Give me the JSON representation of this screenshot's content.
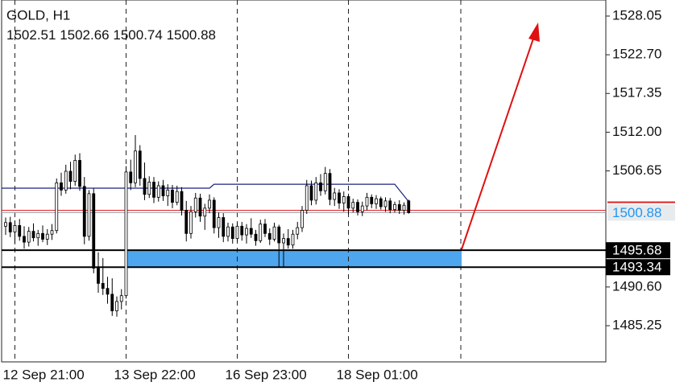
{
  "chart_data": {
    "type": "candlestick",
    "title": "GOLD, H1",
    "categories": [
      null,
      null,
      "12 Sep 21:00",
      null,
      null,
      null,
      null,
      null,
      null,
      null,
      null,
      null,
      null,
      null,
      null,
      null,
      null,
      null,
      null,
      null,
      null,
      null,
      null,
      null,
      null,
      null,
      "13 Sep 22:00",
      null,
      null,
      null,
      null,
      null,
      null,
      null,
      null,
      null,
      null,
      null,
      null,
      null,
      null,
      null,
      null,
      null,
      null,
      null,
      null,
      null,
      null,
      null,
      "16 Sep 23:00",
      null,
      null,
      null,
      null,
      null,
      null,
      null,
      null,
      null,
      null,
      null,
      null,
      null,
      null,
      null,
      null,
      null,
      null,
      null,
      null,
      null,
      null,
      null,
      "18 Sep 01:00",
      null,
      null,
      null,
      null,
      null,
      null,
      null,
      null,
      null,
      null,
      null,
      null,
      null
    ],
    "open": [
      1499.0,
      1499.5,
      1498.2,
      1499.1,
      1497.6,
      1496.8,
      1498.3,
      1497.4,
      1498.0,
      1497.2,
      1497.9,
      1498.4,
      1505.0,
      1504.0,
      1506.6,
      1505.2,
      1508.1,
      1504.5,
      1497.6,
      1503.5,
      1493.2,
      1491.1,
      1490.4,
      1489.6,
      1487.3,
      1488.6,
      1489.4,
      1506.5,
      1505.0,
      1509.4,
      1505.6,
      1503.4,
      1505.1,
      1503.0,
      1504.6,
      1503.2,
      1504.0,
      1502.3,
      1503.8,
      1501.2,
      1498.0,
      1501.0,
      1502.9,
      1500.4,
      1501.5,
      1502.6,
      1498.8,
      1500.2,
      1497.6,
      1498.9,
      1497.3,
      1499.0,
      1497.8,
      1498.7,
      1497.9,
      1497.0,
      1499.3,
      1498.0,
      1497.2,
      1498.9,
      1496.7,
      1497.3,
      1496.4,
      1497.9,
      1498.8,
      1501.2,
      1504.6,
      1502.6,
      1505.0,
      1503.9,
      1506.3,
      1502.7,
      1503.6,
      1502.2,
      1503.1,
      1501.5,
      1502.3,
      1501.0,
      1501.8,
      1503.0,
      1502.1,
      1502.8,
      1501.7,
      1502.5,
      1501.3,
      1502.0,
      1501.2,
      1502.51
    ],
    "high": [
      1500.2,
      1500.3,
      1499.8,
      1500.0,
      1499.0,
      1498.9,
      1499.4,
      1498.5,
      1499.1,
      1498.6,
      1499.3,
      1505.6,
      1506.4,
      1507.5,
      1507.9,
      1508.9,
      1509.1,
      1505.8,
      1504.0,
      1504.2,
      1495.4,
      1494.6,
      1492.0,
      1491.8,
      1489.3,
      1490.3,
      1507.3,
      1508.2,
      1511.6,
      1510.2,
      1507.8,
      1505.9,
      1505.8,
      1505.2,
      1505.4,
      1504.8,
      1504.7,
      1504.6,
      1504.4,
      1502.5,
      1501.8,
      1503.6,
      1503.5,
      1502.1,
      1503.4,
      1503.0,
      1500.9,
      1500.8,
      1499.5,
      1499.4,
      1499.5,
      1499.6,
      1499.3,
      1500.1,
      1498.5,
      1499.9,
      1500.0,
      1498.7,
      1499.5,
      1499.2,
      1498.0,
      1498.6,
      1498.5,
      1499.6,
      1501.8,
      1505.4,
      1505.3,
      1505.8,
      1506.2,
      1507.2,
      1506.9,
      1504.3,
      1504.1,
      1503.8,
      1503.5,
      1502.8,
      1502.7,
      1502.4,
      1503.6,
      1503.4,
      1503.3,
      1503.1,
      1503.0,
      1502.9,
      1502.4,
      1502.6,
      1502.3,
      1502.66
    ],
    "low": [
      1497.8,
      1497.5,
      1496.5,
      1497.0,
      1495.9,
      1496.2,
      1496.9,
      1496.3,
      1496.8,
      1496.4,
      1497.1,
      1498.0,
      1503.2,
      1503.5,
      1504.1,
      1504.6,
      1503.9,
      1496.5,
      1497.0,
      1492.5,
      1489.8,
      1489.5,
      1488.3,
      1486.6,
      1486.5,
      1487.5,
      1489.0,
      1504.0,
      1504.4,
      1504.6,
      1502.6,
      1502.9,
      1502.2,
      1502.4,
      1502.5,
      1501.8,
      1501.5,
      1501.9,
      1500.5,
      1496.9,
      1497.3,
      1500.2,
      1499.6,
      1498.5,
      1500.8,
      1498.0,
      1497.4,
      1496.8,
      1496.9,
      1496.6,
      1496.9,
      1497.0,
      1496.6,
      1497.4,
      1496.3,
      1496.7,
      1497.5,
      1496.4,
      1496.9,
      1493.4,
      1493.4,
      1495.9,
      1495.9,
      1497.2,
      1498.2,
      1500.7,
      1501.9,
      1502.0,
      1503.2,
      1503.4,
      1501.9,
      1501.8,
      1501.4,
      1501.0,
      1500.6,
      1500.9,
      1500.5,
      1500.4,
      1501.2,
      1501.5,
      1501.4,
      1501.3,
      1501.0,
      1500.8,
      1500.9,
      1500.7,
      1500.6,
      1500.74
    ],
    "close": [
      1499.5,
      1498.2,
      1499.1,
      1497.6,
      1496.8,
      1498.3,
      1497.4,
      1498.0,
      1497.2,
      1497.9,
      1498.4,
      1505.0,
      1504.0,
      1506.6,
      1505.2,
      1508.1,
      1504.5,
      1497.6,
      1503.5,
      1493.2,
      1491.1,
      1490.4,
      1489.6,
      1487.3,
      1488.6,
      1489.4,
      1506.5,
      1505.0,
      1509.4,
      1505.6,
      1503.4,
      1505.1,
      1503.0,
      1504.6,
      1503.2,
      1504.0,
      1502.3,
      1503.8,
      1501.2,
      1498.0,
      1501.0,
      1502.9,
      1500.4,
      1501.5,
      1502.6,
      1498.8,
      1500.2,
      1497.6,
      1498.9,
      1497.3,
      1499.0,
      1497.8,
      1498.7,
      1497.9,
      1497.0,
      1499.3,
      1498.0,
      1497.2,
      1498.9,
      1496.7,
      1497.3,
      1496.4,
      1497.9,
      1498.8,
      1501.2,
      1504.6,
      1502.6,
      1505.0,
      1503.9,
      1506.3,
      1502.7,
      1503.6,
      1502.2,
      1503.1,
      1501.5,
      1502.3,
      1501.0,
      1501.8,
      1503.0,
      1502.1,
      1502.8,
      1501.7,
      1502.5,
      1501.3,
      1502.0,
      1501.2,
      1501.9,
      1500.88
    ],
    "ma_values": [
      1504.26,
      1504.26,
      1504.26,
      1504.26,
      1504.26,
      1504.26,
      1504.26,
      1504.26,
      1504.26,
      1504.26,
      1504.26,
      1504.26,
      1504.26,
      1504.26,
      1504.26,
      1504.26,
      1504.26,
      1504.26,
      1504.26,
      1504.26,
      1504.26,
      1504.26,
      1504.26,
      1504.26,
      1504.26,
      1504.26,
      1504.26,
      1504.26,
      1504.26,
      1504.26,
      1504.26,
      1504.26,
      1504.26,
      1504.26,
      1504.26,
      1504.26,
      1504.26,
      1504.26,
      1504.26,
      1504.26,
      1504.26,
      1504.26,
      1504.26,
      1504.26,
      1504.26,
      1504.8,
      1504.8,
      1504.8,
      1504.8,
      1504.8,
      1504.8,
      1504.8,
      1504.8,
      1504.8,
      1504.8,
      1504.8,
      1504.8,
      1504.8,
      1504.8,
      1504.8,
      1504.8,
      1504.8,
      1504.8,
      1504.8,
      1504.8,
      1504.8,
      1504.8,
      1504.8,
      1504.8,
      1504.8,
      1504.8,
      1504.8,
      1504.8,
      1504.8,
      1504.8,
      1504.8,
      1504.8,
      1504.8,
      1504.8,
      1504.8,
      1504.8,
      1504.8,
      1504.8,
      1504.8,
      1504.8,
      1504.0,
      1503.2,
      1502.4
    ],
    "ylim": [
      1480.25,
      1530.27
    ],
    "yticks": [
      1528.05,
      {
        "value": 1522.7,
        "label": "1522.70"
      },
      1517.35,
      {
        "value": 1512,
        "label": "1512.00"
      },
      1506.65,
      {
        "value": 1490.6,
        "label": "1490.60"
      },
      1485.25
    ],
    "levels": [
      1495.68,
      1493.34
    ],
    "ask": 1501.2,
    "colors": {
      "candle": "#000000",
      "ma": "#1a237e",
      "zone": "#4ea6ee",
      "ask": "#e02020",
      "bid": "#9aa0a6",
      "price_text": "#2196f3"
    }
  }
}
